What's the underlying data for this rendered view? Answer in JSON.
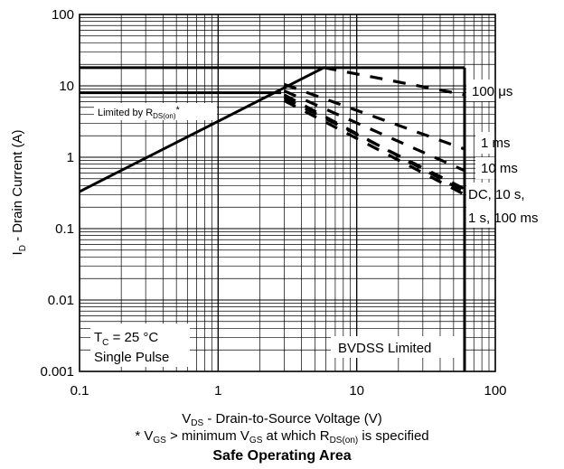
{
  "chart_data": {
    "type": "line",
    "title": "Safe Operating Area",
    "xlabel": {
      "prefix": "V",
      "sub": "DS",
      "suffix": " - Drain-to-Source Voltage (V)"
    },
    "ylabel": "I_D - Drain Current (A)",
    "ylabel_parts": {
      "prefix": "I",
      "sub": "D",
      "suffix": " - Drain Current (A)"
    },
    "footnote": {
      "p1": "* V",
      "s1": "GS",
      "p2": " > minimum V",
      "s2": "GS",
      "p3": " at which R",
      "s3": "DS(on)",
      "p4": " is specified"
    },
    "x_scale": "log",
    "y_scale": "log",
    "xlim": [
      0.1,
      100
    ],
    "ylim": [
      0.001,
      100
    ],
    "x_ticks": [
      0.1,
      1,
      10,
      100
    ],
    "x_tick_labels": [
      "0.1",
      "1",
      "10",
      "100"
    ],
    "y_ticks": [
      0.001,
      0.01,
      0.1,
      1,
      10,
      100
    ],
    "y_tick_labels": [
      "0.001",
      "0.01",
      "0.1",
      "1",
      "10",
      "100"
    ],
    "grid": true,
    "limit_lines": {
      "current_limit_A": 18,
      "current_limit_2_A": 8,
      "bvdss_V": 60,
      "rdson_line": [
        [
          0.1,
          0.33
        ],
        [
          5.8,
          18
        ]
      ]
    },
    "series": [
      {
        "name": "100 μs",
        "style": "dashed",
        "points": [
          [
            5.8,
            18
          ],
          [
            60,
            7.5
          ]
        ]
      },
      {
        "name": "1 ms",
        "style": "dashed",
        "points": [
          [
            3.0,
            10.5
          ],
          [
            60,
            1.3
          ]
        ]
      },
      {
        "name": "10 ms",
        "style": "dashed",
        "points": [
          [
            3.0,
            8.5
          ],
          [
            60,
            0.65
          ]
        ]
      },
      {
        "name": "DC, 10 s, 1 s, 100 ms",
        "style": "dashed",
        "points": [
          [
            3.0,
            7.5
          ],
          [
            60,
            0.33
          ]
        ]
      },
      {
        "name": "",
        "style": "dashed",
        "points": [
          [
            3.0,
            6.8
          ],
          [
            60,
            0.36
          ]
        ]
      },
      {
        "name": "",
        "style": "dashed",
        "points": [
          [
            3.0,
            6.2
          ],
          [
            60,
            0.3
          ]
        ]
      }
    ],
    "series_labels": [
      "100 μs",
      "1 ms",
      "10 ms",
      "DC, 10 s,",
      "1 s, 100 ms"
    ],
    "annotations": {
      "rdson": {
        "prefix": "Limited by R",
        "sub": "DS(on)",
        "suffix": "*"
      },
      "tc": {
        "prefix": "T",
        "sub": "C",
        "suffix": " = 25 °C"
      },
      "pulse": "Single Pulse",
      "bvdss": "BVDSS Limited"
    }
  }
}
